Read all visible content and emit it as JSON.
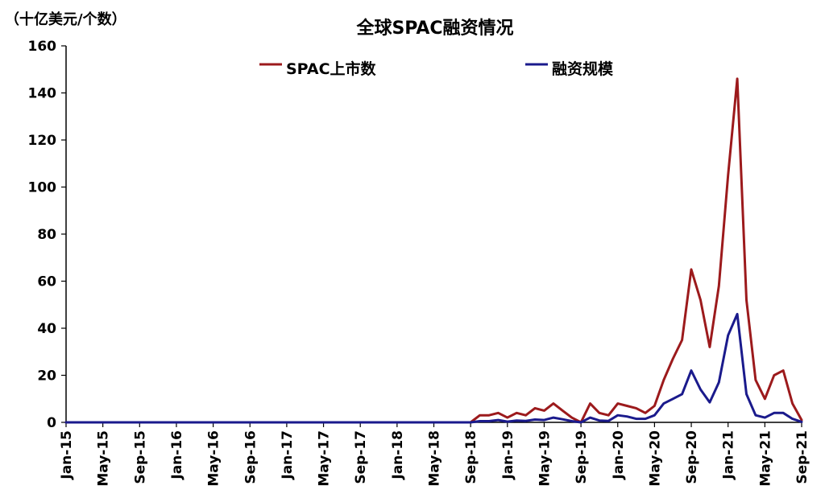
{
  "chart_data": {
    "type": "line",
    "title": "全球SPAC融资情况",
    "unit_label": "（十亿美元/个数）",
    "ylim": [
      0,
      160
    ],
    "yticks": [
      0,
      20,
      40,
      60,
      80,
      100,
      120,
      140,
      160
    ],
    "x_tick_labels": [
      "Jan-15",
      "May-15",
      "Sep-15",
      "Jan-16",
      "May-16",
      "Sep-16",
      "Jan-17",
      "May-17",
      "Sep-17",
      "Jan-18",
      "May-18",
      "Sep-18",
      "Jan-19",
      "May-19",
      "Sep-19",
      "Jan-20",
      "May-20",
      "Sep-20",
      "Jan-21",
      "May-21",
      "Sep-21"
    ],
    "x_start": "Jan-15",
    "x_end": "Sep-21",
    "legend_position": "top",
    "grid": false,
    "series": [
      {
        "name": "SPAC上市数",
        "color": "#9c1a1c",
        "values": [
          0,
          0,
          0,
          0,
          0,
          0,
          0,
          0,
          0,
          0,
          0,
          0,
          0,
          0,
          0,
          0,
          0,
          0,
          0,
          0,
          0,
          0,
          0,
          0,
          0,
          0,
          0,
          0,
          0,
          0,
          0,
          0,
          0,
          0,
          0,
          0,
          0,
          0,
          0,
          0,
          0,
          0,
          0,
          0,
          0,
          3,
          3,
          4,
          2,
          4,
          3,
          6,
          5,
          8,
          5,
          2,
          0,
          8,
          4,
          3,
          8,
          7,
          6,
          4,
          7,
          18,
          27,
          35,
          65,
          52,
          32,
          58,
          105,
          146,
          52,
          18,
          10,
          20,
          22,
          8,
          1
        ]
      },
      {
        "name": "融资规模",
        "color": "#1a1a8c",
        "values": [
          0,
          0,
          0,
          0,
          0,
          0,
          0,
          0,
          0,
          0,
          0,
          0,
          0,
          0,
          0,
          0,
          0,
          0,
          0,
          0,
          0,
          0,
          0,
          0,
          0,
          0,
          0,
          0,
          0,
          0,
          0,
          0,
          0,
          0,
          0,
          0,
          0,
          0,
          0,
          0,
          0,
          0,
          0,
          0,
          0,
          0.5,
          0.5,
          1,
          0.3,
          0.8,
          0.6,
          1.2,
          1,
          2,
          1.3,
          0.5,
          0,
          2,
          0.8,
          0.6,
          3,
          2.5,
          1.5,
          1.5,
          3,
          8,
          10,
          12,
          22,
          14,
          8.5,
          17,
          37,
          46,
          12,
          3,
          2,
          4,
          4,
          1.5,
          0.2
        ]
      }
    ]
  }
}
